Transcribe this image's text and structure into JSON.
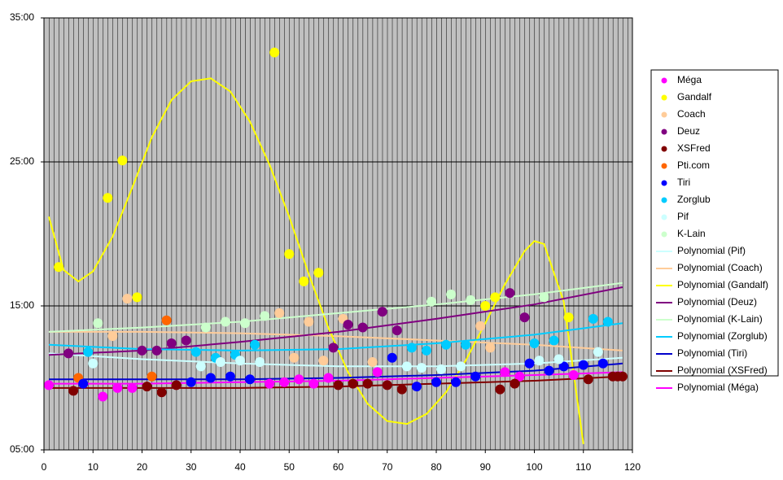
{
  "chart_data": {
    "type": "scatter",
    "xlim": [
      0,
      120
    ],
    "xticks": [
      0,
      10,
      20,
      30,
      40,
      50,
      60,
      70,
      80,
      90,
      100,
      110,
      120
    ],
    "ylim": [
      5,
      35
    ],
    "yticks": [
      {
        "value": 5,
        "label": "05:00"
      },
      {
        "value": 15,
        "label": "15:00"
      },
      {
        "value": 25,
        "label": "25:00"
      },
      {
        "value": 35,
        "label": "35:00"
      }
    ],
    "grid": true,
    "legend": "right",
    "series": [
      {
        "name": "Méga",
        "color": "#ff00ff",
        "style": "marker",
        "x": [
          1,
          12,
          15,
          18,
          46,
          49,
          52,
          55,
          58,
          68,
          94,
          97,
          108
        ],
        "values": [
          9.5,
          8.7,
          9.3,
          9.3,
          9.6,
          9.7,
          9.9,
          9.6,
          10.0,
          10.4,
          10.4,
          10.1,
          10.2
        ]
      },
      {
        "name": "Gandalf",
        "color": "#ffff00",
        "style": "marker",
        "x": [
          3,
          13,
          16,
          19,
          47,
          50,
          53,
          56,
          90,
          92,
          107
        ],
        "values": [
          17.7,
          22.5,
          25.1,
          15.6,
          32.6,
          18.6,
          16.7,
          17.3,
          15.0,
          15.6,
          14.2
        ]
      },
      {
        "name": "Coach",
        "color": "#ffcc99",
        "style": "marker",
        "x": [
          14,
          17,
          48,
          51,
          54,
          57,
          61,
          67,
          89,
          91
        ],
        "values": [
          12.9,
          15.5,
          14.5,
          11.4,
          13.9,
          11.2,
          14.1,
          11.1,
          13.6,
          12.1
        ]
      },
      {
        "name": "Deuz",
        "color": "#800080",
        "style": "marker",
        "x": [
          5,
          20,
          23,
          26,
          29,
          59,
          62,
          65,
          69,
          72,
          95,
          98
        ],
        "values": [
          11.7,
          11.9,
          11.9,
          12.4,
          12.6,
          12.1,
          13.7,
          13.5,
          14.6,
          13.3,
          15.9,
          14.2
        ]
      },
      {
        "name": "XSFred",
        "color": "#800000",
        "style": "marker",
        "x": [
          6,
          21,
          24,
          27,
          60,
          63,
          66,
          70,
          73,
          93,
          96,
          111,
          116,
          117,
          118
        ],
        "values": [
          9.1,
          9.4,
          9.0,
          9.5,
          9.5,
          9.6,
          9.6,
          9.5,
          9.2,
          9.2,
          9.6,
          9.9,
          10.1,
          10.1,
          10.1
        ]
      },
      {
        "name": "Pti.com",
        "color": "#ff6600",
        "style": "marker",
        "x": [
          7,
          22,
          25
        ],
        "values": [
          10.0,
          10.1,
          14.0
        ]
      },
      {
        "name": "Tiri",
        "color": "#0000ff",
        "style": "marker",
        "x": [
          8,
          30,
          34,
          38,
          42,
          71,
          76,
          80,
          84,
          88,
          99,
          103,
          106,
          110,
          114
        ],
        "values": [
          9.6,
          9.7,
          10.0,
          10.1,
          9.9,
          11.4,
          9.4,
          9.7,
          9.7,
          10.1,
          11.0,
          10.5,
          10.8,
          10.9,
          11.0
        ]
      },
      {
        "name": "Zorglub",
        "color": "#00ccff",
        "style": "marker",
        "x": [
          9,
          31,
          35,
          39,
          43,
          75,
          78,
          82,
          86,
          100,
          104,
          112,
          115
        ],
        "values": [
          11.8,
          11.8,
          11.4,
          11.6,
          12.3,
          12.1,
          11.9,
          12.3,
          12.3,
          12.4,
          12.6,
          14.1,
          13.9
        ]
      },
      {
        "name": "Pif",
        "color": "#ccffff",
        "style": "marker",
        "x": [
          10,
          32,
          36,
          40,
          44,
          74,
          77,
          81,
          85,
          101,
          105,
          113
        ],
        "values": [
          11.0,
          10.8,
          11.1,
          11.2,
          11.1,
          10.8,
          10.7,
          10.6,
          10.8,
          11.2,
          11.3,
          11.8
        ]
      },
      {
        "name": "K-Lain",
        "color": "#ccffcc",
        "style": "marker",
        "x": [
          11,
          33,
          37,
          41,
          45,
          79,
          83,
          87,
          102
        ],
        "values": [
          13.8,
          13.5,
          13.9,
          13.8,
          14.3,
          15.3,
          15.8,
          15.4,
          15.6
        ]
      },
      {
        "name": "Polynomial (Pif)",
        "color": "#ccffff",
        "style": "line",
        "x": [
          1,
          20,
          40,
          60,
          80,
          100,
          118
        ],
        "values": [
          11.7,
          11.3,
          11.0,
          10.8,
          10.8,
          11.0,
          11.4
        ]
      },
      {
        "name": "Polynomial (Coach)",
        "color": "#ffcc99",
        "style": "line",
        "x": [
          1,
          20,
          40,
          60,
          80,
          100,
          118
        ],
        "values": [
          13.2,
          13.2,
          13.1,
          12.9,
          12.6,
          12.3,
          11.9
        ]
      },
      {
        "name": "Polynomial (Gandalf)",
        "color": "#ffff00",
        "style": "line",
        "x": [
          1,
          4,
          7,
          10,
          14,
          18,
          22,
          26,
          30,
          34,
          38,
          42,
          46,
          50,
          54,
          58,
          62,
          66,
          70,
          74,
          78,
          82,
          86,
          90,
          94,
          98,
          100,
          102,
          106,
          110
        ],
        "values": [
          21.2,
          17.5,
          16.7,
          17.4,
          19.8,
          23.2,
          26.7,
          29.3,
          30.6,
          30.8,
          29.9,
          27.8,
          24.8,
          21.2,
          17.2,
          13.5,
          10.4,
          8.2,
          7.0,
          6.8,
          7.5,
          9.0,
          11.2,
          13.8,
          16.5,
          18.8,
          19.5,
          19.3,
          15.3,
          5.4
        ]
      },
      {
        "name": "Polynomial (Deuz)",
        "color": "#800080",
        "style": "line",
        "x": [
          1,
          20,
          40,
          60,
          80,
          100,
          118
        ],
        "values": [
          11.6,
          11.9,
          12.5,
          13.2,
          14.1,
          15.1,
          16.3
        ]
      },
      {
        "name": "Polynomial (K-Lain)",
        "color": "#ccffcc",
        "style": "line",
        "x": [
          1,
          20,
          40,
          60,
          80,
          100,
          118
        ],
        "values": [
          13.2,
          13.5,
          13.9,
          14.5,
          15.1,
          15.8,
          16.6
        ]
      },
      {
        "name": "Polynomial (Zorglub)",
        "color": "#00ccff",
        "style": "line",
        "x": [
          1,
          20,
          40,
          60,
          80,
          100,
          118
        ],
        "values": [
          12.3,
          12.0,
          11.9,
          12.0,
          12.4,
          13.0,
          13.8
        ]
      },
      {
        "name": "Polynomial (Tiri)",
        "color": "#0000cc",
        "style": "line",
        "x": [
          1,
          20,
          40,
          60,
          80,
          100,
          118
        ],
        "values": [
          9.9,
          9.9,
          9.9,
          10.0,
          10.2,
          10.5,
          11.0
        ]
      },
      {
        "name": "Polynomial (XSFred)",
        "color": "#800000",
        "style": "line",
        "x": [
          1,
          20,
          40,
          60,
          80,
          100,
          118
        ],
        "values": [
          9.3,
          9.3,
          9.3,
          9.4,
          9.6,
          9.8,
          10.1
        ]
      },
      {
        "name": "Polynomial (Méga)",
        "color": "#ff00ff",
        "style": "line",
        "x": [
          1,
          20,
          40,
          60,
          80,
          100,
          118
        ],
        "values": [
          9.6,
          9.6,
          9.7,
          9.8,
          10.0,
          10.2,
          10.4
        ]
      }
    ]
  }
}
